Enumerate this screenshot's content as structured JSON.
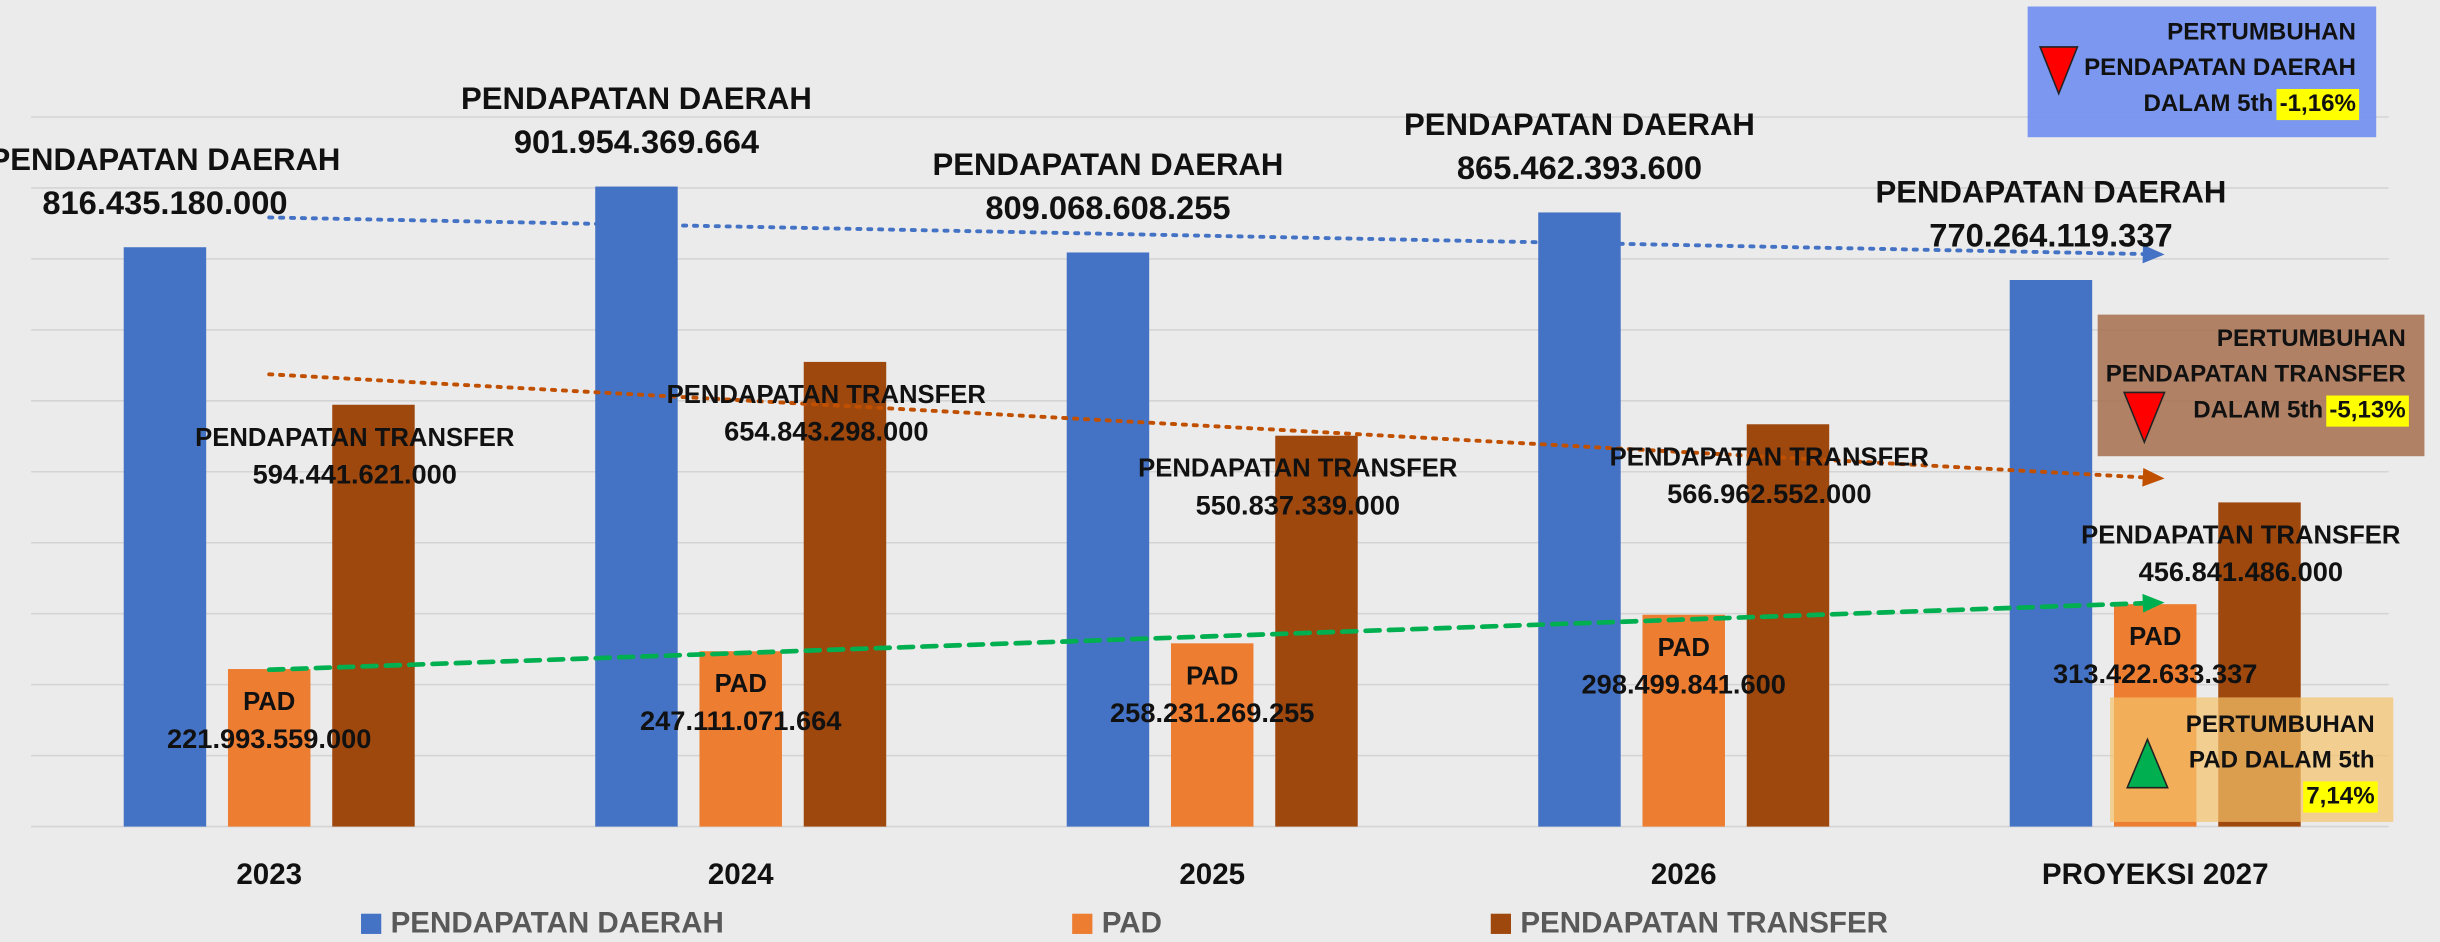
{
  "chart_data": {
    "type": "bar",
    "categories": [
      "2023",
      "2024",
      "2025",
      "2026",
      "PROYEKSI 2027"
    ],
    "series": [
      {
        "name": "PENDAPATAN DAERAH",
        "color": "#4472c4",
        "values": [
          816435180000,
          901954369664,
          809068608255,
          865462393600,
          770264119337
        ],
        "value_labels": [
          "816.435.180.000",
          "901.954.369.664",
          "809.068.608.255",
          "865.462.393.600",
          "770.264.119.337"
        ]
      },
      {
        "name": "PAD",
        "color": "#ed7d31",
        "values": [
          221993559000,
          247111071664,
          258231269255,
          298499841600,
          313422633337
        ],
        "value_labels": [
          "221.993.559.000",
          "247.111.071.664",
          "258.231.269.255",
          "298.499.841.600",
          "313.422.633.337"
        ]
      },
      {
        "name": "PENDAPATAN TRANSFER",
        "color": "#9e480e",
        "values": [
          594441621000,
          654843298000,
          550837339000,
          566962552000,
          456841486000
        ],
        "value_labels": [
          "594.441.621.000",
          "654.843.298.000",
          "550.837.339.000",
          "566.962.552.000",
          "456.841.486.000"
        ]
      }
    ],
    "ylim": [
      0,
      1000000000000
    ],
    "yticks": [
      0,
      100000000000,
      200000000000,
      300000000000,
      400000000000,
      500000000000,
      600000000000,
      700000000000,
      800000000000,
      900000000000,
      1000000000000
    ],
    "grid": true,
    "trendline_colors": [
      "#4472c4",
      "#00b050",
      "#c05000"
    ],
    "legend": "bottom",
    "annotations": [
      {
        "lines": [
          "PERTUMBUHAN",
          "PENDAPATAN DAERAH",
          "DALAM 5th"
        ],
        "value": "-1,16%"
      },
      {
        "lines": [
          "PERTUMBUHAN",
          "PENDAPATAN TRANSFER",
          "DALAM 5th"
        ],
        "value": "-5,13%"
      },
      {
        "lines": [
          "PERTUMBUHAN",
          "PAD DALAM 5th"
        ],
        "value": "7,14%"
      }
    ]
  }
}
